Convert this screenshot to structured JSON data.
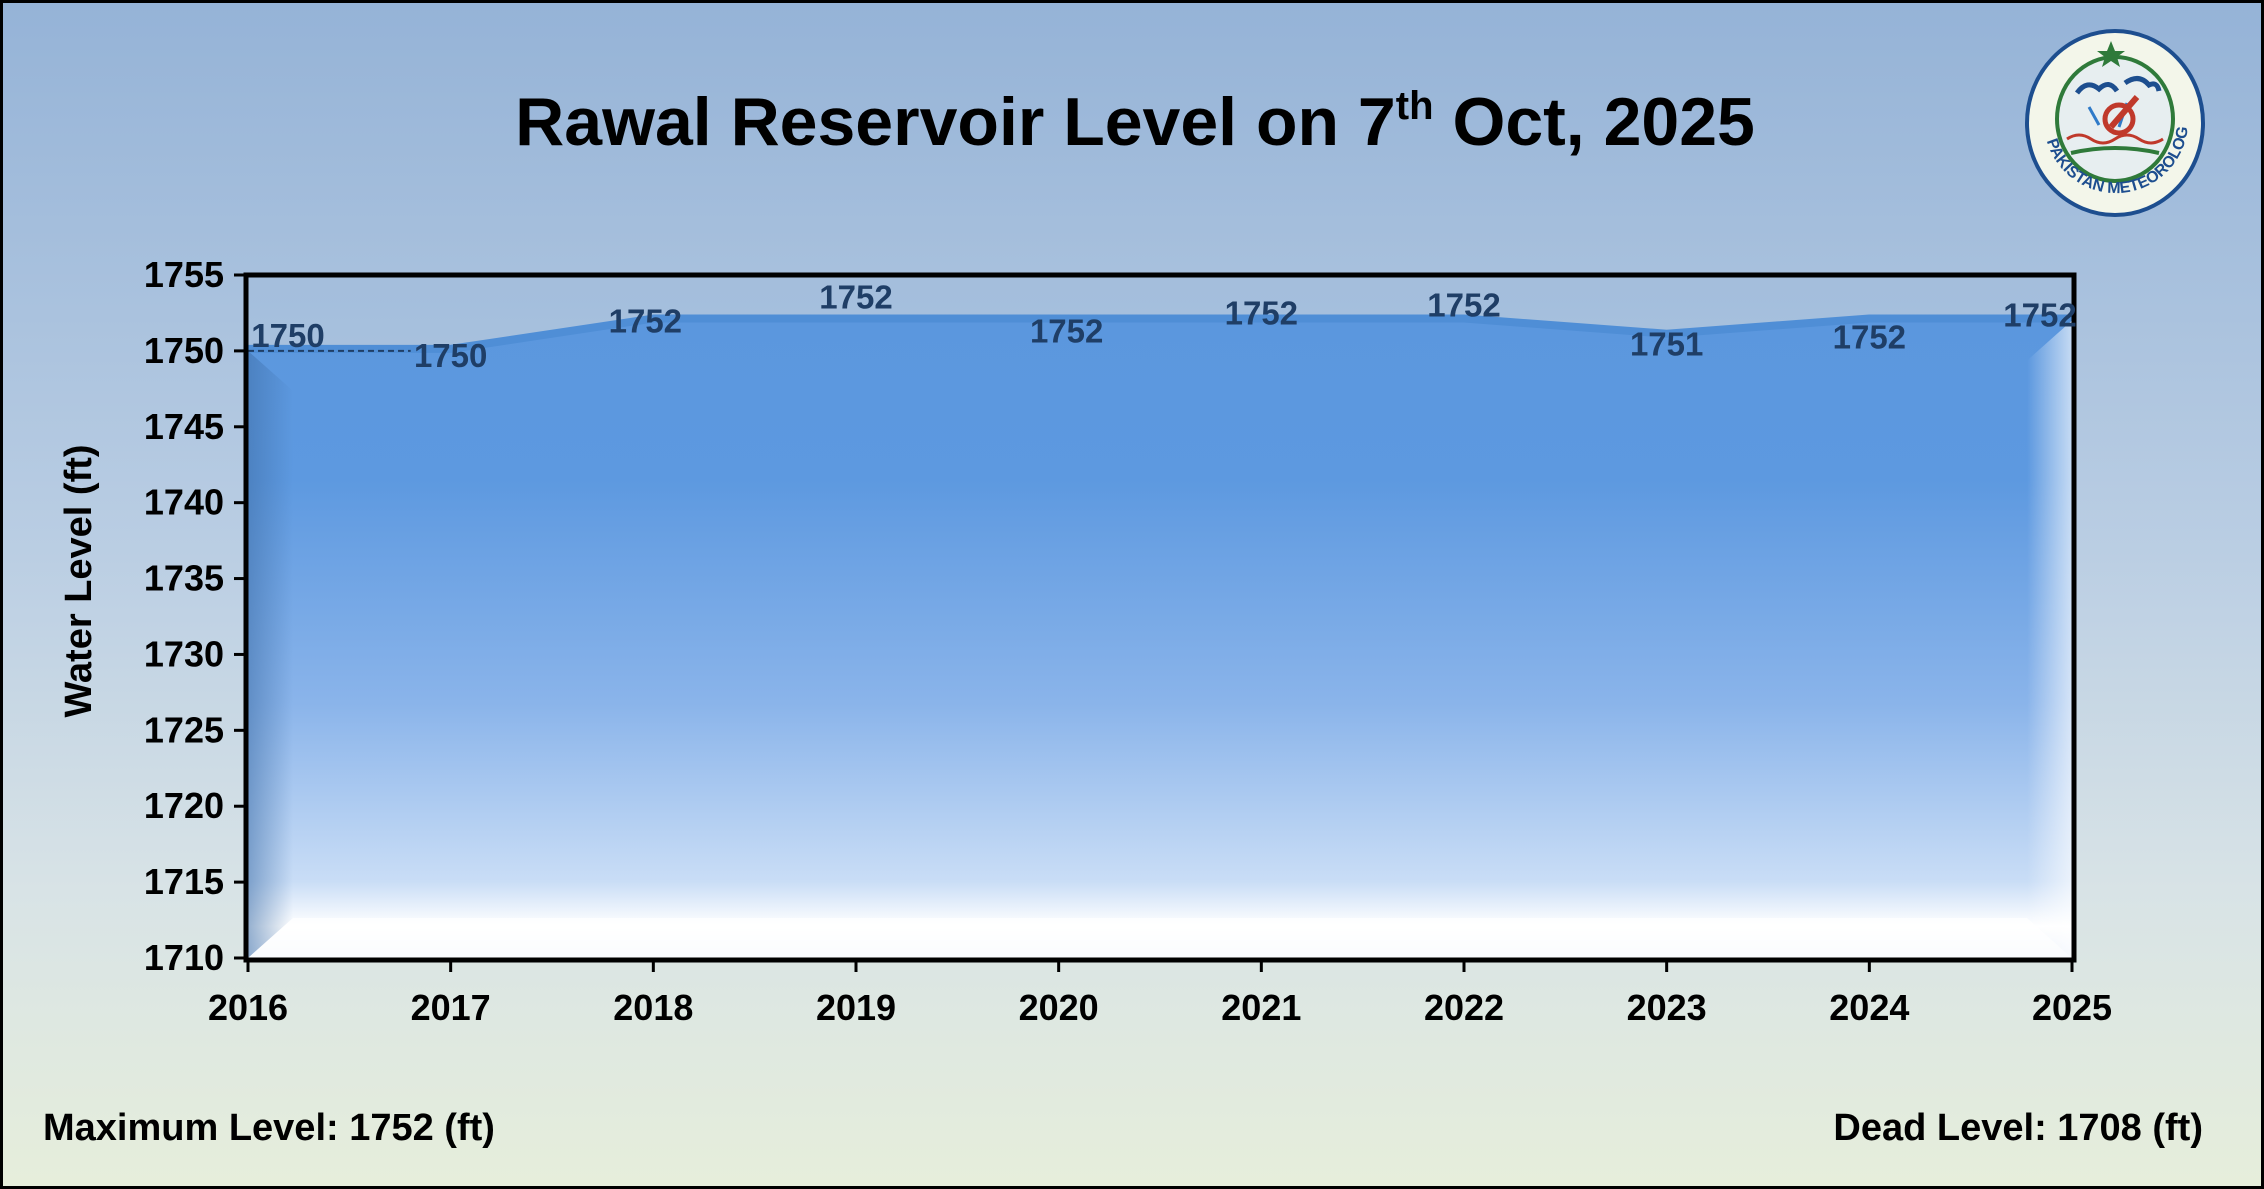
{
  "title": {
    "main": "Rawal Reservoir Level on 7",
    "sup": "th",
    "rest": "Oct, 2025"
  },
  "chart_data": {
    "type": "area",
    "title": "Rawal Reservoir Level on 7th Oct, 2025",
    "xlabel": "",
    "ylabel": "Water Level (ft)",
    "categories": [
      "2016",
      "2017",
      "2018",
      "2019",
      "2020",
      "2021",
      "2022",
      "2023",
      "2024",
      "2025"
    ],
    "values": [
      1750,
      1750,
      1752,
      1752,
      1752,
      1752,
      1752,
      1751,
      1752,
      1752
    ],
    "data_labels": [
      "1750",
      "1750",
      "1752",
      "1752",
      "1752",
      "1752",
      "1752",
      "1751",
      "1752",
      "1752"
    ],
    "ylim": [
      1710,
      1755
    ],
    "yticks": [
      "1710",
      "1715",
      "1720",
      "1725",
      "1730",
      "1735",
      "1740",
      "1745",
      "1750",
      "1755"
    ],
    "grid": false,
    "legend": "none",
    "colors": {
      "fill_top": "#5b9be0",
      "fill_bottom": "#ffffff",
      "line": "#4f8ed6",
      "label": "#1f3e66"
    }
  },
  "footer": {
    "maximum_level": "Maximum Level: 1752 (ft)",
    "dead_level": "Dead Level: 1708 (ft)"
  },
  "logo": {
    "icon": "pmd-emblem-icon",
    "text": "PAKISTAN METEOROLOGICAL DEPARTMENT"
  }
}
